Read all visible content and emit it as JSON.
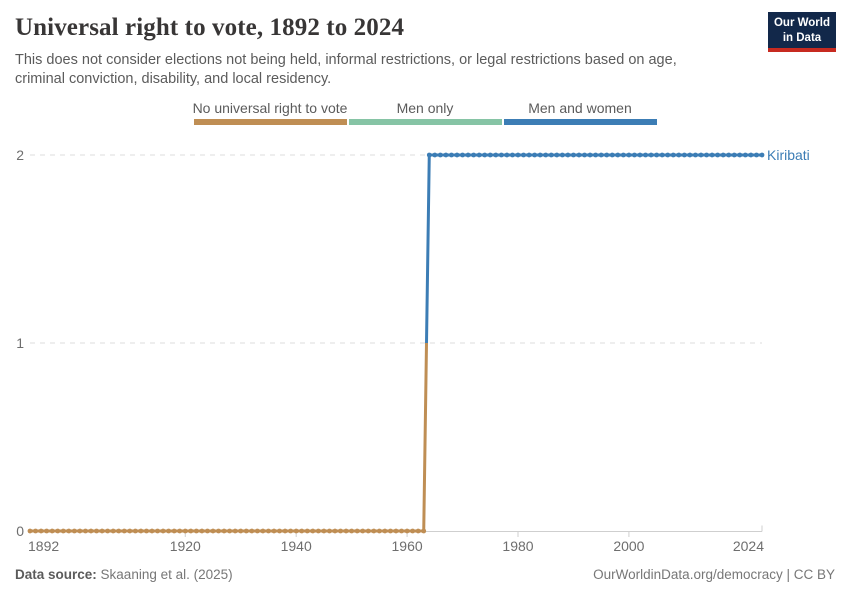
{
  "header": {
    "title": "Universal right to vote, 1892 to 2024",
    "subtitle": "This does not consider elections not being held, informal restrictions, or legal restrictions based on age, criminal conviction, disability, and local residency.",
    "logo": {
      "line1": "Our World",
      "line2": "in Data",
      "bg_color": "#12284a",
      "accent_color": "#c72a20"
    }
  },
  "legend": {
    "items": [
      {
        "label": "No universal right to vote",
        "color": "#bf8e54"
      },
      {
        "label": "Men only",
        "color": "#86c4a5"
      },
      {
        "label": "Men and women",
        "color": "#3c7db5"
      }
    ]
  },
  "chart_data": {
    "type": "line",
    "title": "Universal right to vote, 1892 to 2024",
    "entity": "Kiribati",
    "entity_label_color": "#3c7db5",
    "x": {
      "min": 1892,
      "max": 2024,
      "ticks": [
        1892,
        1920,
        1940,
        1960,
        1980,
        2000,
        2024
      ]
    },
    "y": {
      "min": 0,
      "max": 2,
      "ticks": [
        0,
        1,
        2
      ]
    },
    "grid": "horizontal dashed at y=1 and y=2, solid axis at y=0",
    "legend_position": "top center",
    "series": [
      {
        "name": "Kiribati",
        "steps": [
          {
            "category": "No universal right to vote",
            "value": 0,
            "from_year": 1892,
            "to_year": 1963,
            "color": "#bf8e54"
          },
          {
            "category": "Men and women",
            "value": 2,
            "from_year": 1964,
            "to_year": 2024,
            "color": "#3c7db5"
          }
        ]
      }
    ],
    "colors": {
      "gridline": "#dedede",
      "axis": "#cfcfcf",
      "tick_label": "#6e6e6e"
    }
  },
  "footer": {
    "source_label": "Data source:",
    "source_value": "Skaaning et al. (2025)",
    "attribution": "OurWorldinData.org/democracy | CC BY"
  }
}
